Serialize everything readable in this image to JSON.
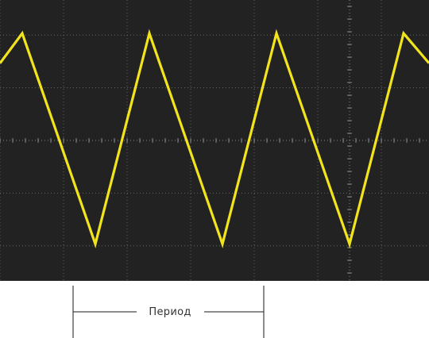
{
  "chart_data": {
    "type": "line",
    "title": "",
    "xlabel": "",
    "ylabel": "",
    "grid": true,
    "xlim": [
      0,
      6.75
    ],
    "ylim": [
      -4,
      4
    ],
    "series": [
      {
        "color": "#f2e41e",
        "x": [
          0,
          0.35,
          1.5,
          2.35,
          3.5,
          4.35,
          5.5,
          6.35,
          6.75
        ],
        "y": [
          2.2,
          3.05,
          -2.95,
          3.05,
          -2.95,
          3.05,
          -2.95,
          3.05,
          2.2
        ]
      }
    ]
  },
  "annotation": {
    "period_label": "Период"
  },
  "colors": {
    "screen_background": "#222222",
    "trace": "#f2e41e",
    "grid": "#6a6a6a"
  }
}
